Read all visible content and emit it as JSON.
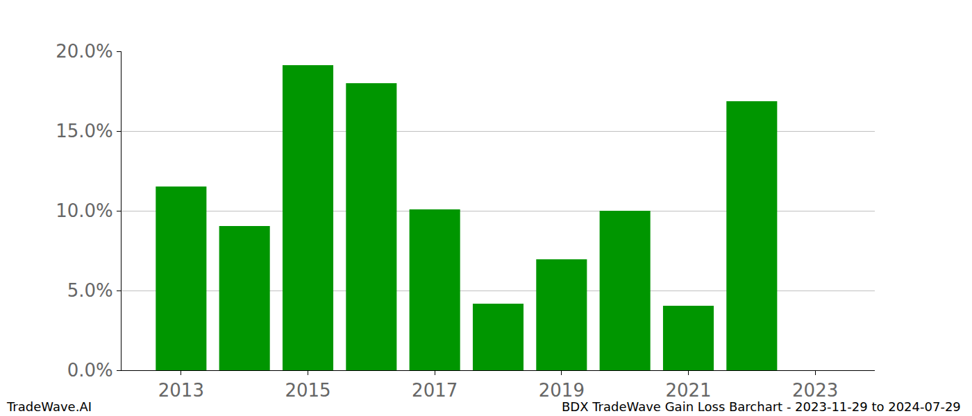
{
  "chart_data": {
    "type": "bar",
    "title": "BDX TradeWave Gain Loss Barchart - 2023-11-29 to 2024-07-29",
    "annotations": [
      "TradeWave.AI"
    ],
    "x": [
      2013,
      2014,
      2015,
      2016,
      2017,
      2018,
      2019,
      2020,
      2021,
      2022,
      2023
    ],
    "values": [
      11.52,
      9.04,
      19.13,
      18.0,
      10.09,
      4.17,
      6.96,
      10.0,
      4.04,
      16.87,
      0
    ],
    "color": "#009600",
    "xlim": [
      2012.06,
      2023.94
    ],
    "xticks": [
      2013,
      2015,
      2017,
      2019,
      2021,
      2023
    ],
    "ylim": [
      0,
      20
    ],
    "yticks": [
      {
        "value": 0,
        "label": "0.0%"
      },
      {
        "value": 5,
        "label": "5.0%"
      },
      {
        "value": 10,
        "label": "10.0%"
      },
      {
        "value": 15,
        "label": "15.0%"
      },
      {
        "value": 20,
        "label": "20.0%"
      }
    ],
    "grid": true
  }
}
